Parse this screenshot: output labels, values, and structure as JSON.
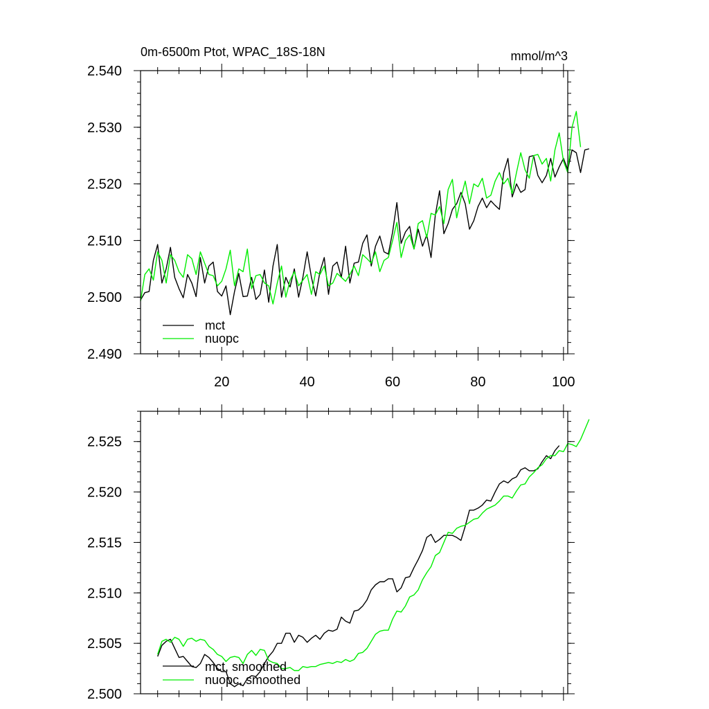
{
  "chart_data": [
    {
      "type": "line",
      "title": "0m-6500m Ptot, WPAC_18S-18N",
      "units": "mmol/m^3",
      "xlabel": "",
      "ylabel": "",
      "xlim": [
        1,
        101
      ],
      "ylim": [
        2.49,
        2.54
      ],
      "x_ticks": [
        20,
        40,
        60,
        80,
        100
      ],
      "x_tick_labels": [
        "20",
        "40",
        "60",
        "80",
        "100"
      ],
      "y_ticks": [
        2.49,
        2.5,
        2.51,
        2.52,
        2.53,
        2.54
      ],
      "y_tick_labels": [
        "2.490",
        "2.500",
        "2.510",
        "2.520",
        "2.530",
        "2.540"
      ],
      "legend": "bottom-left",
      "x_start": 1,
      "series": [
        {
          "name": "mct",
          "color": "#000000",
          "values": [
            2.4995,
            2.5008,
            2.501,
            2.5065,
            2.5093,
            2.5025,
            2.505,
            2.5088,
            2.5035,
            2.5015,
            2.4999,
            2.504,
            2.5025,
            2.5001,
            2.507,
            2.5025,
            2.5055,
            2.5062,
            2.501,
            2.5002,
            2.502,
            2.4969,
            2.501,
            2.5042,
            2.5001,
            2.5002,
            2.5035,
            2.4996,
            2.5005,
            2.5048,
            2.4991,
            2.5055,
            2.5093,
            2.5,
            2.5035,
            2.5018,
            2.505,
            2.5,
            2.5035,
            2.508,
            2.5035,
            2.5002,
            2.5045,
            2.507,
            2.5005,
            2.5055,
            2.5062,
            2.5035,
            2.509,
            2.5025,
            2.506,
            2.5062,
            2.5095,
            2.511,
            2.5055,
            2.509,
            2.5108,
            2.508,
            2.5076,
            2.5115,
            2.5167,
            2.5095,
            2.5115,
            2.5125,
            2.5085,
            2.512,
            2.509,
            2.511,
            2.507,
            2.5145,
            2.5188,
            2.5112,
            2.513,
            2.5155,
            2.5165,
            2.5185,
            2.5165,
            2.512,
            2.5135,
            2.516,
            2.5175,
            2.5158,
            2.517,
            2.5162,
            2.5155,
            2.522,
            2.5245,
            2.5177,
            2.52,
            2.5185,
            2.519,
            2.5248,
            2.525,
            2.5215,
            2.5202,
            2.5215,
            2.5245,
            2.5212,
            2.523,
            2.5245,
            2.5225,
            2.526,
            2.5255,
            2.522,
            2.526,
            2.5262
          ]
        },
        {
          "name": "nuopc",
          "color": "#00ee00",
          "values": [
            2.4993,
            2.504,
            2.505,
            2.503,
            2.508,
            2.5065,
            2.5025,
            2.5075,
            2.5065,
            2.5045,
            2.5035,
            2.5075,
            2.5068,
            2.504,
            2.508,
            2.506,
            2.504,
            2.5038,
            2.502,
            2.5028,
            2.505,
            2.5083,
            2.502,
            2.505,
            2.5045,
            2.5085,
            2.5015,
            2.5038,
            2.504,
            2.5025,
            2.502,
            2.4988,
            2.5025,
            2.5055,
            2.5,
            2.503,
            2.5045,
            2.502,
            2.503,
            2.504,
            2.5005,
            2.5045,
            2.504,
            2.5055,
            2.502,
            2.5025,
            2.5042,
            2.5035,
            2.5028,
            2.504,
            2.5055,
            2.5038,
            2.5075,
            2.5068,
            2.506,
            2.508,
            2.5045,
            2.5065,
            2.507,
            2.51,
            2.5132,
            2.507,
            2.51,
            2.511,
            2.5085,
            2.513,
            2.5135,
            2.5105,
            2.5148,
            2.5145,
            2.516,
            2.513,
            2.519,
            2.5208,
            2.514,
            2.5175,
            2.5205,
            2.5165,
            2.52,
            2.5195,
            2.521,
            2.5175,
            2.518,
            2.5205,
            2.522,
            2.52,
            2.521,
            2.5183,
            2.522,
            2.5255,
            2.5225,
            2.521,
            2.525,
            2.5252,
            2.5235,
            2.5245,
            2.5205,
            2.526,
            2.529,
            2.524,
            2.522,
            2.53,
            2.5328,
            2.5265
          ]
        }
      ]
    },
    {
      "type": "line",
      "title": "",
      "xlabel": "",
      "ylabel": "",
      "xlim": [
        1,
        101
      ],
      "ylim": [
        2.5,
        2.528
      ],
      "y_ticks": [
        2.5,
        2.505,
        2.51,
        2.515,
        2.52,
        2.525
      ],
      "y_tick_labels": [
        "2.500",
        "2.505",
        "2.510",
        "2.515",
        "2.520",
        "2.525"
      ],
      "legend": "bottom-left",
      "x_start": 5,
      "series": [
        {
          "name": "mct, smoothed",
          "color": "#000000",
          "values": [
            2.5037,
            2.5048,
            2.5052,
            2.5054,
            2.5045,
            2.5036,
            2.5037,
            2.5032,
            2.5027,
            2.5026,
            2.503,
            2.5039,
            2.5036,
            2.5031,
            2.5025,
            2.5022,
            2.5022,
            2.501,
            2.5007,
            2.501,
            2.5008,
            2.5015,
            2.5018,
            2.5017,
            2.5022,
            2.503,
            2.5037,
            2.5042,
            2.505,
            2.505,
            2.506,
            2.506,
            2.5051,
            2.5058,
            2.5056,
            2.5051,
            2.5055,
            2.5058,
            2.5054,
            2.506,
            2.5063,
            2.5062,
            2.5064,
            2.5076,
            2.5072,
            2.507,
            2.5082,
            2.5083,
            2.5087,
            2.5093,
            2.5103,
            2.5108,
            2.5111,
            2.5111,
            2.5114,
            2.5114,
            2.5101,
            2.5105,
            2.5115,
            2.5116,
            2.5125,
            2.5133,
            2.5142,
            2.5155,
            2.5158,
            2.515,
            2.5153,
            2.5157,
            2.5157,
            2.5157,
            2.5155,
            2.5152,
            2.5166,
            2.5182,
            2.5182,
            2.5184,
            2.5187,
            2.5192,
            2.5191,
            2.52,
            2.5208,
            2.5211,
            2.5209,
            2.5213,
            2.5215,
            2.5222,
            2.5224,
            2.5221,
            2.5221,
            2.5223,
            2.523,
            2.5236,
            2.5233,
            2.5241,
            2.5246
          ]
        },
        {
          "name": "nuopc, smoothed",
          "color": "#00ee00",
          "values": [
            2.5039,
            2.5052,
            2.5054,
            2.5051,
            2.5056,
            2.5054,
            2.5047,
            2.5054,
            2.5055,
            2.5052,
            2.5054,
            2.5053,
            2.5047,
            2.5044,
            2.5039,
            2.5037,
            2.5032,
            2.5036,
            2.5037,
            2.5036,
            2.503,
            2.5039,
            2.5043,
            2.5038,
            2.5044,
            2.5043,
            2.5033,
            2.5031,
            2.503,
            2.5025,
            2.5025,
            2.5026,
            2.5023,
            2.5023,
            2.5027,
            2.5026,
            2.5027,
            2.5027,
            2.5029,
            2.503,
            2.5031,
            2.503,
            2.5032,
            2.5031,
            2.5034,
            2.5032,
            2.5034,
            2.504,
            2.5041,
            2.5045,
            2.5052,
            2.5059,
            2.5062,
            2.5063,
            2.5063,
            2.5074,
            2.5082,
            2.5081,
            2.5087,
            2.5096,
            2.5098,
            2.5103,
            2.5113,
            2.512,
            2.5126,
            2.5137,
            2.514,
            2.515,
            2.516,
            2.5159,
            2.5164,
            2.5166,
            2.5167,
            2.517,
            2.5173,
            2.5174,
            2.5179,
            2.5183,
            2.5185,
            2.5187,
            2.5191,
            2.5196,
            2.5196,
            2.5194,
            2.5201,
            2.5207,
            2.5208,
            2.5215,
            2.5219,
            2.5224,
            2.5227,
            2.5233,
            2.5236,
            2.5236,
            2.5241,
            2.524,
            2.5248,
            2.5247,
            2.5245,
            2.5252,
            2.5262,
            2.5272
          ]
        }
      ]
    }
  ]
}
